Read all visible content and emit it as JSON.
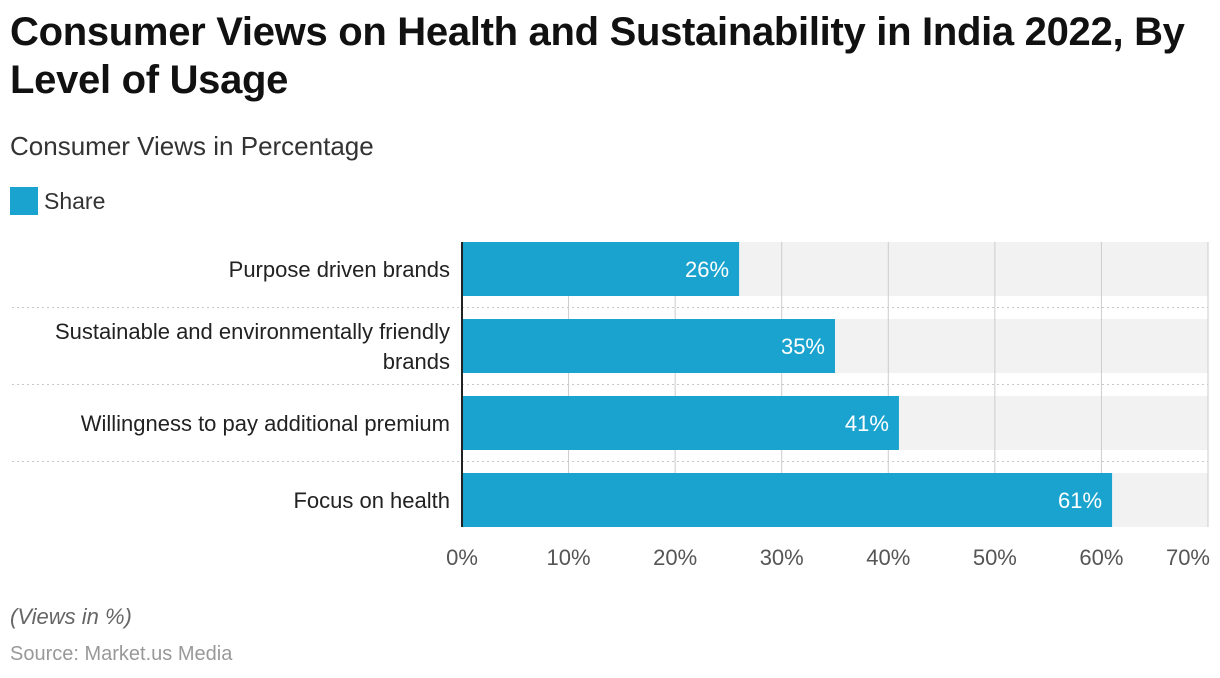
{
  "header": {
    "title": "Consumer Views on Health and Sustainability in India 2022, By Level of Usage",
    "subtitle": "Consumer Views in Percentage"
  },
  "footer": {
    "note": "(Views in %)",
    "source": "Source: Market.us Media"
  },
  "colors": {
    "bar": "#1aa3cf",
    "track": "#f2f2f2",
    "grid": "#cccccc",
    "axis": "#222222",
    "separator": "#c8c8c8"
  },
  "chart_data": {
    "type": "bar",
    "orientation": "horizontal",
    "categories": [
      [
        "Purpose driven brands"
      ],
      [
        "Sustainable and environmentally friendly",
        "brands"
      ],
      [
        "Willingness to pay additional premium"
      ],
      [
        "Focus on health"
      ]
    ],
    "series": [
      {
        "name": "Share",
        "values": [
          26,
          35,
          41,
          61
        ]
      }
    ],
    "data_labels": [
      "26%",
      "35%",
      "41%",
      "61%"
    ],
    "xlim": [
      0,
      70
    ],
    "ticks": [
      0,
      10,
      20,
      30,
      40,
      50,
      60,
      70
    ],
    "tick_labels": [
      "0%",
      "10%",
      "20%",
      "30%",
      "40%",
      "50%",
      "60%",
      "70%"
    ],
    "grid": true,
    "legend": "top-left"
  }
}
